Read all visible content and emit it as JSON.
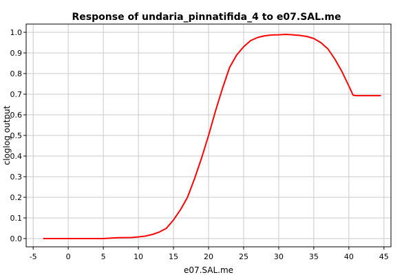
{
  "chart_data": {
    "type": "line",
    "title": "Response of undaria_pinnatifida_4 to e07.SAL.me",
    "xlabel": "e07.SAL.me",
    "ylabel": "cloglog output",
    "xlim": [
      -6,
      46
    ],
    "ylim": [
      -0.04,
      1.04
    ],
    "xticks": [
      -5,
      0,
      5,
      10,
      15,
      20,
      25,
      30,
      35,
      40,
      45
    ],
    "yticks": [
      0.0,
      0.1,
      0.2,
      0.3,
      0.4,
      0.5,
      0.6,
      0.7,
      0.8,
      0.9,
      1.0
    ],
    "xtick_labels": [
      "-5",
      "0",
      "5",
      "10",
      "15",
      "20",
      "25",
      "30",
      "35",
      "40",
      "45"
    ],
    "ytick_labels": [
      "0.0",
      "0.1",
      "0.2",
      "0.3",
      "0.4",
      "0.5",
      "0.6",
      "0.7",
      "0.8",
      "0.9",
      "1.0"
    ],
    "grid": true,
    "series": [
      {
        "color": "#ff0000",
        "x": [
          -3.5,
          0,
          5,
          7,
          9,
          10,
          11,
          12,
          13,
          14,
          15,
          16,
          17,
          18,
          19,
          20,
          21,
          22,
          23,
          24,
          25,
          26,
          27,
          28,
          29,
          30,
          31,
          32,
          33,
          34,
          35,
          36,
          37,
          38,
          39,
          40,
          40.6,
          41,
          42,
          43,
          44,
          44.5
        ],
        "y": [
          0.0,
          0.0,
          0.0,
          0.004,
          0.005,
          0.008,
          0.012,
          0.02,
          0.032,
          0.05,
          0.09,
          0.14,
          0.2,
          0.29,
          0.39,
          0.5,
          0.62,
          0.73,
          0.83,
          0.89,
          0.93,
          0.96,
          0.975,
          0.983,
          0.987,
          0.988,
          0.99,
          0.988,
          0.985,
          0.98,
          0.97,
          0.95,
          0.92,
          0.87,
          0.81,
          0.74,
          0.695,
          0.693,
          0.693,
          0.693,
          0.693,
          0.693
        ]
      }
    ]
  }
}
